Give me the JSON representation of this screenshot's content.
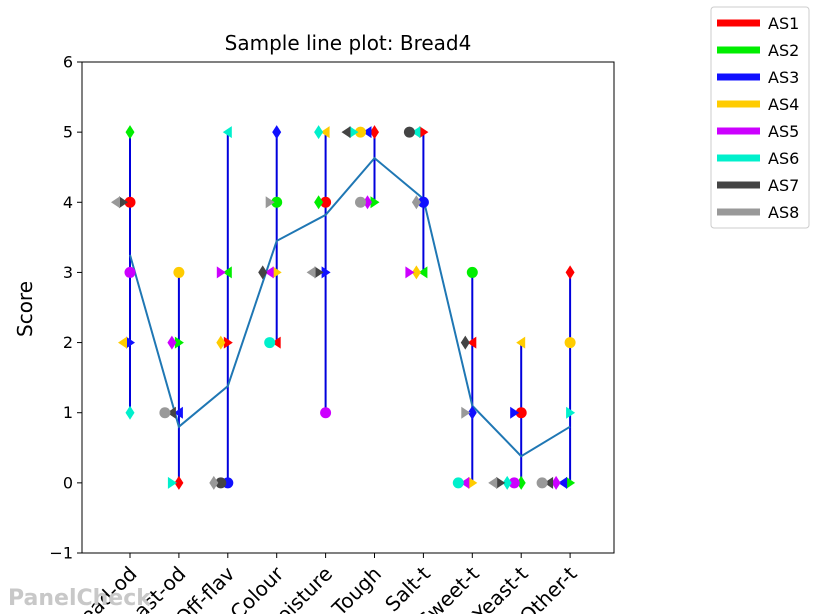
{
  "watermark": "PanelCheck",
  "chart_data": {
    "type": "line",
    "title": "Sample line plot: Bread4",
    "xlabel": "",
    "ylabel": "Score",
    "ylim": [
      -1,
      6
    ],
    "yticks": [
      -1,
      0,
      1,
      2,
      3,
      4,
      5,
      6
    ],
    "grid": false,
    "legend_placement": "outside top-right",
    "categories": [
      "Bread-od",
      "Yeast-od",
      "Off-flav",
      "Colour",
      "Moisture",
      "Tough",
      "Salt-t",
      "Sweet-t",
      "Yeast-t",
      "Other-t"
    ],
    "mean": {
      "color": "#1f77b4",
      "values": [
        3.25,
        0.8,
        1.38,
        3.45,
        3.82,
        4.63,
        4.05,
        1.1,
        0.38,
        0.8
      ]
    },
    "range_color": "#0000dd",
    "series": [
      {
        "name": "AS1",
        "color": "#ff0000",
        "values": [
          4,
          0,
          2,
          2,
          4,
          5,
          5,
          2,
          1,
          3
        ]
      },
      {
        "name": "AS2",
        "color": "#00ee00",
        "values": [
          5,
          2,
          3,
          4,
          4,
          4,
          3,
          3,
          0,
          0
        ]
      },
      {
        "name": "AS3",
        "color": "#1010ff",
        "values": [
          2,
          1,
          0,
          5,
          3,
          5,
          4,
          1,
          1,
          0
        ]
      },
      {
        "name": "AS4",
        "color": "#ffcc00",
        "values": [
          2,
          3,
          2,
          3,
          5,
          5,
          3,
          0,
          2,
          2
        ]
      },
      {
        "name": "AS5",
        "color": "#cc00ff",
        "values": [
          3,
          2,
          3,
          3,
          1,
          4,
          3,
          0,
          0,
          0
        ]
      },
      {
        "name": "AS6",
        "color": "#00f0cc",
        "values": [
          1,
          0,
          5,
          2,
          5,
          5,
          5,
          0,
          0,
          1
        ]
      },
      {
        "name": "AS7",
        "color": "#444444",
        "values": [
          4,
          1,
          0,
          3,
          3,
          5,
          5,
          2,
          0,
          0
        ]
      },
      {
        "name": "AS8",
        "color": "#999999",
        "values": [
          4,
          1,
          0,
          4,
          3,
          4,
          4,
          1,
          0,
          0
        ]
      }
    ]
  }
}
